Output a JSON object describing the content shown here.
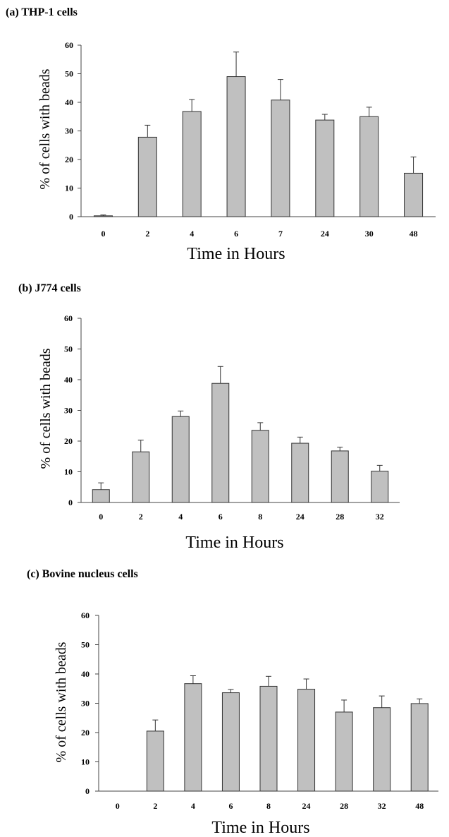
{
  "chart_data": [
    {
      "type": "bar",
      "title": "(a) THP-1 cells",
      "xlabel": "Time in Hours",
      "ylabel": "% of cells with beads",
      "ylim": [
        0,
        60
      ],
      "yticks": [
        "0",
        "10",
        "20",
        "30",
        "40",
        "50",
        "60"
      ],
      "categories": [
        "0",
        "2",
        "4",
        "6",
        "7",
        "24",
        "30",
        "48"
      ],
      "values": [
        0.3,
        27.8,
        36.8,
        49,
        40.8,
        33.8,
        35,
        15.2
      ],
      "error": [
        0.3,
        4.2,
        4.2,
        8.6,
        7.2,
        2,
        3.3,
        5.7
      ],
      "bar_color": "#c0c0c0"
    },
    {
      "type": "bar",
      "title": "(b) J774 cells",
      "xlabel": "Time in Hours",
      "ylabel": "% of cells with beads",
      "ylim": [
        0,
        60
      ],
      "yticks": [
        "0",
        "10",
        "20",
        "30",
        "40",
        "50",
        "60"
      ],
      "categories": [
        "0",
        "2",
        "4",
        "6",
        "8",
        "24",
        "28",
        "32"
      ],
      "values": [
        4.2,
        16.5,
        28,
        38.8,
        23.5,
        19.3,
        16.8,
        10.2
      ],
      "error": [
        2.2,
        3.8,
        1.8,
        5.5,
        2.5,
        2,
        1.2,
        1.9
      ],
      "bar_color": "#c0c0c0"
    },
    {
      "type": "bar",
      "title": "(c) Bovine nucleus cells",
      "xlabel": "Time in Hours",
      "ylabel": "% of cells with beads",
      "ylim": [
        0,
        60
      ],
      "yticks": [
        "0",
        "10",
        "20",
        "30",
        "40",
        "50",
        "60"
      ],
      "categories": [
        "0",
        "2",
        "4",
        "6",
        "8",
        "24",
        "28",
        "32",
        "48"
      ],
      "values": [
        0,
        20.5,
        36.7,
        33.6,
        35.8,
        34.8,
        27,
        28.5,
        29.9
      ],
      "error": [
        0,
        3.8,
        2.7,
        1.1,
        3.4,
        3.5,
        4.1,
        4,
        1.6
      ],
      "bar_color": "#c0c0c0"
    }
  ]
}
